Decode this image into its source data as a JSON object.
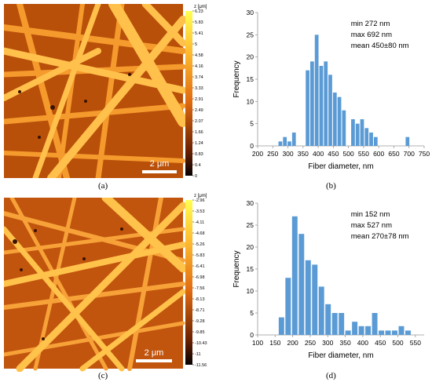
{
  "panels": {
    "a": {
      "label": "(a)",
      "scale_bar_text": "2 μm",
      "colorbar_unit": "z [μm]",
      "colorbar_ticks": [
        "6.23",
        "5.83",
        "5.41",
        "5",
        "4.58",
        "4.16",
        "3.74",
        "3.33",
        "2.91",
        "2.49",
        "2.07",
        "1.66",
        "1.24",
        "0.83",
        "0.4",
        "0"
      ],
      "colors": {
        "dark": "#3a1300",
        "mid": "#d46a10",
        "bright": "#ffb84a",
        "fiber": "#ffb038"
      }
    },
    "c": {
      "label": "(c)",
      "scale_bar_text": "2 μm",
      "colorbar_unit": "z [μm]",
      "colorbar_ticks": [
        "-2.96",
        "-3.53",
        "-4.11",
        "-4.68",
        "-5.26",
        "-5.83",
        "-6.41",
        "-6.98",
        "-7.56",
        "-8.13",
        "-8.71",
        "-9.28",
        "-9.85",
        "-10.43",
        "-11",
        "-11.56"
      ],
      "colors": {
        "dark": "#3a1300",
        "mid": "#e0701c",
        "bright": "#ffc04a",
        "fiber": "#ffbf40"
      }
    },
    "b": {
      "label": "(b)"
    },
    "d": {
      "label": "(d)"
    }
  },
  "chart_data": [
    {
      "type": "bar",
      "ylabel": "Frequency",
      "xlabel": "Fiber diameter, nm",
      "annotations": [
        "min 272 nm",
        "max 692 nm",
        "mean 450±80 nm"
      ],
      "xlim": [
        200,
        750
      ],
      "ylim": [
        0,
        30
      ],
      "xticks": [
        200,
        250,
        300,
        350,
        400,
        450,
        500,
        550,
        600,
        650,
        700,
        750
      ],
      "yticks": [
        0,
        5,
        10,
        15,
        20,
        25,
        30
      ],
      "bin_width": 15,
      "x": [
        275,
        290,
        305,
        320,
        335,
        350,
        365,
        380,
        395,
        410,
        425,
        440,
        455,
        470,
        485,
        500,
        515,
        530,
        545,
        560,
        575,
        590,
        605,
        620,
        635,
        650,
        665,
        680,
        695
      ],
      "values": [
        1,
        2,
        1,
        3,
        0,
        0,
        17,
        19,
        25,
        18,
        19,
        16,
        12,
        11,
        8,
        0,
        6,
        5,
        6,
        4,
        3,
        2,
        0,
        0,
        0,
        0,
        0,
        0,
        2
      ],
      "color": "#5b9bd5"
    },
    {
      "type": "bar",
      "ylabel": "Frequency",
      "xlabel": "Fiber diameter, nm",
      "annotations": [
        "min 152 nm",
        "max 527 nm",
        "mean 270±78 nm"
      ],
      "xlim": [
        100,
        575
      ],
      "ylim": [
        0,
        30
      ],
      "xticks": [
        100,
        150,
        200,
        250,
        300,
        350,
        400,
        450,
        500,
        550
      ],
      "yticks": [
        0,
        5,
        10,
        15,
        20,
        25,
        30
      ],
      "bin_width": 19,
      "x": [
        168,
        187,
        206,
        225,
        244,
        263,
        282,
        301,
        320,
        339,
        358,
        377,
        396,
        415,
        434,
        453,
        472,
        491,
        510,
        529
      ],
      "values": [
        4,
        13,
        27,
        23,
        17,
        16,
        11,
        7,
        5,
        5,
        1,
        3,
        2,
        2,
        5,
        1,
        1,
        1,
        2,
        1
      ],
      "color": "#5b9bd5"
    }
  ]
}
